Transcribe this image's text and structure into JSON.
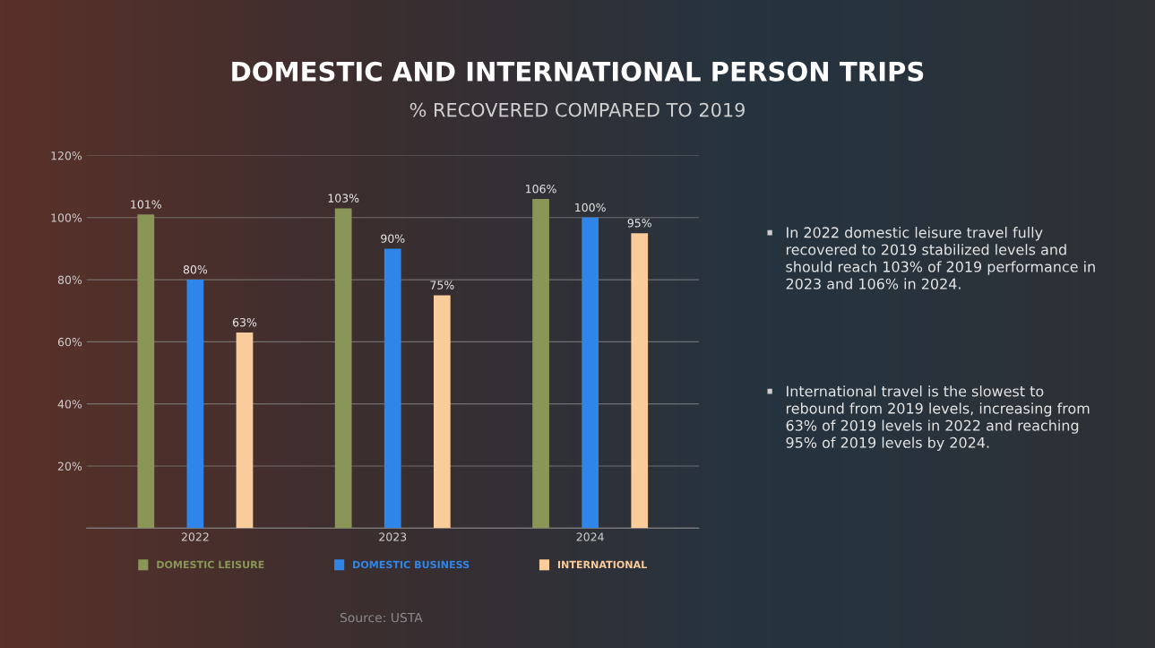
{
  "chart_data": {
    "type": "bar",
    "title": "DOMESTIC AND INTERNATIONAL PERSON TRIPS",
    "subtitle": "% RECOVERED COMPARED TO 2019",
    "categories": [
      "2022",
      "2023",
      "2024"
    ],
    "series": [
      {
        "name": "DOMESTIC LEISURE",
        "color": "#8a9658",
        "values": [
          101,
          103,
          106
        ],
        "value_labels": [
          "101%",
          "103%",
          "106%"
        ]
      },
      {
        "name": "DOMESTIC BUSINESS",
        "color": "#2f86e8",
        "values": [
          80,
          90,
          100
        ],
        "value_labels": [
          "80%",
          "90%",
          "100%"
        ]
      },
      {
        "name": "INTERNATIONAL",
        "color": "#f9cc9c",
        "values": [
          63,
          75,
          95
        ],
        "value_labels": [
          "63%",
          "75%",
          "95%"
        ]
      }
    ],
    "ylim": [
      0,
      120
    ],
    "yticks": [
      {
        "value": 0,
        "label": null
      },
      {
        "value": 20,
        "label": "20%"
      },
      {
        "value": 40,
        "label": "40%"
      },
      {
        "value": 60,
        "label": "60%"
      },
      {
        "value": 80,
        "label": "80%"
      },
      {
        "value": 100,
        "label": "100%"
      },
      {
        "value": 120,
        "label": "120%"
      }
    ],
    "grid": "y",
    "legend": "bottom",
    "annotations": [
      "In 2022 domestic leisure travel fully recovered to 2019 stabilized levels and should reach 103% of 2019 performance in 2023 and 106% in 2024.",
      "International travel is the slowest to rebound from 2019 levels, increasing from 63% of 2019 levels in 2022 and reaching 95% of 2019 levels by 2024.",
      "Source: USTA"
    ]
  }
}
